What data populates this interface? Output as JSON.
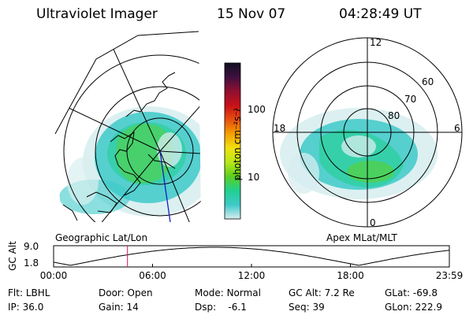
{
  "header": {
    "title": "Ultraviolet Imager",
    "date": "15 Nov 07",
    "time": "04:28:49 UT"
  },
  "colors": {
    "stops": [
      "#d8eef0",
      "#3ec9c9",
      "#20d090",
      "#5cd020",
      "#b8e818",
      "#f2e010",
      "#f5a000",
      "#e85010",
      "#c81018",
      "#901030",
      "#401040",
      "#101020"
    ],
    "blue_line": "#1020c0",
    "red_marker": "#d81060"
  },
  "colorbar": {
    "unit_label": "photon cm⁻²s⁻¹",
    "ticks": [
      {
        "label": "100",
        "value": 100
      },
      {
        "label": "10",
        "value": 10
      }
    ],
    "log_range": [
      2.5,
      500
    ]
  },
  "left_map": {
    "caption": "Geographic Lat/Lon"
  },
  "right_map": {
    "caption": "Apex MLat/MLT",
    "mlt_labels": {
      "top": "12",
      "left": "18",
      "right": "6",
      "bottom": "0"
    },
    "lat_labels": [
      "60",
      "70",
      "80"
    ]
  },
  "altitude_strip": {
    "axis_title": "GC Alt",
    "y_ticks": [
      "9.0",
      "1.8"
    ],
    "x_ticks": [
      "00:00",
      "06:00",
      "12:00",
      "18:00",
      "23:59"
    ],
    "marker_time_hours": 4.48
  },
  "status": {
    "row1": [
      {
        "key": "Flt:",
        "value": "LBHL"
      },
      {
        "key": "Door:",
        "value": "Open"
      },
      {
        "key": "Mode:",
        "value": "Normal"
      },
      {
        "key": "GC Alt:",
        "value": "7.2 Re"
      },
      {
        "key": "GLat:",
        "value": "-69.8"
      }
    ],
    "row2": [
      {
        "key": "IP:",
        "value": "36.0"
      },
      {
        "key": "Gain:",
        "value": "14"
      },
      {
        "key": "Dsp:",
        "value": "   -6.1"
      },
      {
        "key": "Seq:",
        "value": "39"
      },
      {
        "key": "GLon:",
        "value": "222.9"
      }
    ]
  }
}
